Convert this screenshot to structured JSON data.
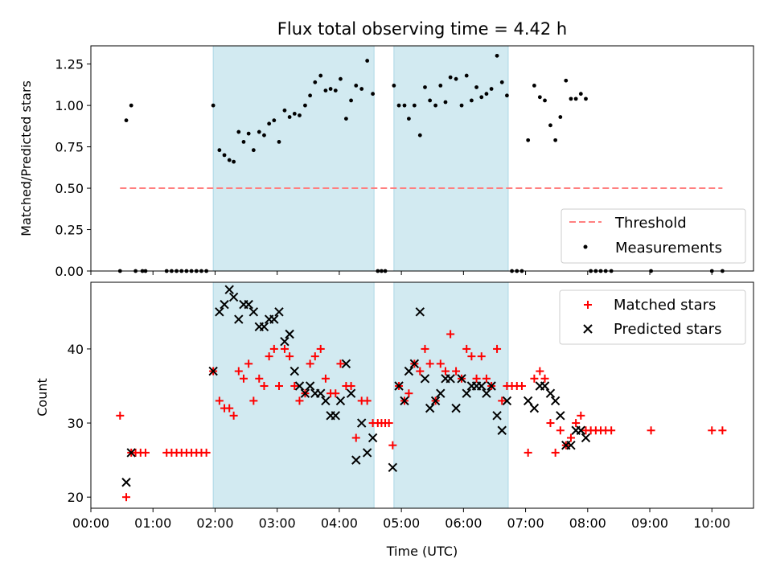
{
  "title": "Flux total observing time = 4.42 h",
  "xlabel": "Time (UTC)",
  "top_ylabel": "Matched/Predicted stars",
  "bottom_ylabel": "Count",
  "legend_top": {
    "threshold": "Threshold",
    "measurements": "Measurements"
  },
  "legend_bottom": {
    "matched": "Matched stars",
    "predicted": "Predicted stars"
  },
  "colors": {
    "shade": "#add8e6",
    "threshold": "#ff7f7f",
    "measurements": "#000000",
    "matched": "#ff0000",
    "predicted": "#000000"
  },
  "chart_data": [
    {
      "type": "scatter",
      "title": "Flux total observing time = 4.42 h",
      "ylabel": "Matched/Predicted stars",
      "xlim": [
        0,
        10.67
      ],
      "ylim": [
        0,
        1.36
      ],
      "x_ticks": [
        "00:00",
        "01:00",
        "02:00",
        "03:00",
        "04:00",
        "05:00",
        "06:00",
        "07:00",
        "08:00",
        "09:00",
        "10:00"
      ],
      "y_ticks": [
        "0.00",
        "0.25",
        "0.50",
        "0.75",
        "1.00",
        "1.25"
      ],
      "shaded_intervals": [
        [
          1.97,
          4.56
        ],
        [
          4.88,
          6.72
        ]
      ],
      "threshold": {
        "name": "Threshold",
        "y": 0.5,
        "x_range": [
          0.47,
          10.17
        ]
      },
      "series": [
        {
          "name": "Measurements",
          "points": [
            [
              0.47,
              0.0
            ],
            [
              0.57,
              0.91
            ],
            [
              0.65,
              1.0
            ],
            [
              0.72,
              0.0
            ],
            [
              0.83,
              0.0
            ],
            [
              0.88,
              0.0
            ],
            [
              1.22,
              0.0
            ],
            [
              1.3,
              0.0
            ],
            [
              1.38,
              0.0
            ],
            [
              1.46,
              0.0
            ],
            [
              1.54,
              0.0
            ],
            [
              1.62,
              0.0
            ],
            [
              1.7,
              0.0
            ],
            [
              1.78,
              0.0
            ],
            [
              1.86,
              0.0
            ],
            [
              1.97,
              1.0
            ],
            [
              2.07,
              0.73
            ],
            [
              2.15,
              0.7
            ],
            [
              2.23,
              0.67
            ],
            [
              2.3,
              0.66
            ],
            [
              2.38,
              0.84
            ],
            [
              2.46,
              0.78
            ],
            [
              2.54,
              0.83
            ],
            [
              2.62,
              0.73
            ],
            [
              2.71,
              0.84
            ],
            [
              2.79,
              0.82
            ],
            [
              2.87,
              0.89
            ],
            [
              2.95,
              0.91
            ],
            [
              3.03,
              0.78
            ],
            [
              3.12,
              0.97
            ],
            [
              3.2,
              0.93
            ],
            [
              3.28,
              0.95
            ],
            [
              3.36,
              0.94
            ],
            [
              3.45,
              1.0
            ],
            [
              3.53,
              1.06
            ],
            [
              3.61,
              1.14
            ],
            [
              3.7,
              1.18
            ],
            [
              3.78,
              1.09
            ],
            [
              3.86,
              1.1
            ],
            [
              3.94,
              1.09
            ],
            [
              4.02,
              1.16
            ],
            [
              4.11,
              0.92
            ],
            [
              4.19,
              1.03
            ],
            [
              4.27,
              1.12
            ],
            [
              4.36,
              1.1
            ],
            [
              4.45,
              1.27
            ],
            [
              4.54,
              1.07
            ],
            [
              4.62,
              0.0
            ],
            [
              4.68,
              0.0
            ],
            [
              4.74,
              0.0
            ],
            [
              4.88,
              1.12
            ],
            [
              4.96,
              1.0
            ],
            [
              5.05,
              1.0
            ],
            [
              5.12,
              0.92
            ],
            [
              5.21,
              1.0
            ],
            [
              5.3,
              0.82
            ],
            [
              5.38,
              1.11
            ],
            [
              5.46,
              1.03
            ],
            [
              5.55,
              1.0
            ],
            [
              5.63,
              1.12
            ],
            [
              5.71,
              1.02
            ],
            [
              5.79,
              1.17
            ],
            [
              5.88,
              1.16
            ],
            [
              5.97,
              1.0
            ],
            [
              6.05,
              1.18
            ],
            [
              6.13,
              1.03
            ],
            [
              6.21,
              1.11
            ],
            [
              6.29,
              1.05
            ],
            [
              6.37,
              1.07
            ],
            [
              6.45,
              1.1
            ],
            [
              6.54,
              1.3
            ],
            [
              6.62,
              1.14
            ],
            [
              6.7,
              1.06
            ],
            [
              6.78,
              0.0
            ],
            [
              6.86,
              0.0
            ],
            [
              6.94,
              0.0
            ],
            [
              7.04,
              0.79
            ],
            [
              7.14,
              1.12
            ],
            [
              7.23,
              1.05
            ],
            [
              7.31,
              1.03
            ],
            [
              7.4,
              0.88
            ],
            [
              7.48,
              0.79
            ],
            [
              7.56,
              0.93
            ],
            [
              7.65,
              1.15
            ],
            [
              7.73,
              1.04
            ],
            [
              7.81,
              1.04
            ],
            [
              7.89,
              1.07
            ],
            [
              7.97,
              1.04
            ],
            [
              8.05,
              0.0
            ],
            [
              8.13,
              0.0
            ],
            [
              8.21,
              0.0
            ],
            [
              8.29,
              0.0
            ],
            [
              8.38,
              0.0
            ],
            [
              9.02,
              0.0
            ],
            [
              10.0,
              0.0
            ],
            [
              10.17,
              0.0
            ]
          ]
        }
      ]
    },
    {
      "type": "scatter",
      "ylabel": "Count",
      "xlabel": "Time (UTC)",
      "xlim": [
        0,
        10.67
      ],
      "ylim": [
        18.5,
        49
      ],
      "x_ticks": [
        "00:00",
        "01:00",
        "02:00",
        "03:00",
        "04:00",
        "05:00",
        "06:00",
        "07:00",
        "08:00",
        "09:00",
        "10:00"
      ],
      "y_ticks": [
        "20",
        "30",
        "40"
      ],
      "shaded_intervals": [
        [
          1.97,
          4.56
        ],
        [
          4.88,
          6.72
        ]
      ],
      "series": [
        {
          "name": "Matched stars",
          "points": [
            [
              0.47,
              31
            ],
            [
              0.57,
              20
            ],
            [
              0.65,
              26
            ],
            [
              0.72,
              26
            ],
            [
              0.8,
              26
            ],
            [
              0.88,
              26
            ],
            [
              1.22,
              26
            ],
            [
              1.3,
              26
            ],
            [
              1.38,
              26
            ],
            [
              1.46,
              26
            ],
            [
              1.54,
              26
            ],
            [
              1.62,
              26
            ],
            [
              1.7,
              26
            ],
            [
              1.78,
              26
            ],
            [
              1.86,
              26
            ],
            [
              1.97,
              37
            ],
            [
              2.07,
              33
            ],
            [
              2.15,
              32
            ],
            [
              2.23,
              32
            ],
            [
              2.3,
              31
            ],
            [
              2.38,
              37
            ],
            [
              2.46,
              36
            ],
            [
              2.54,
              38
            ],
            [
              2.62,
              33
            ],
            [
              2.71,
              36
            ],
            [
              2.79,
              35
            ],
            [
              2.87,
              39
            ],
            [
              2.95,
              40
            ],
            [
              3.03,
              35
            ],
            [
              3.12,
              40
            ],
            [
              3.2,
              39
            ],
            [
              3.28,
              35
            ],
            [
              3.36,
              33
            ],
            [
              3.45,
              34
            ],
            [
              3.53,
              38
            ],
            [
              3.61,
              39
            ],
            [
              3.7,
              40
            ],
            [
              3.78,
              36
            ],
            [
              3.86,
              34
            ],
            [
              3.94,
              34
            ],
            [
              4.02,
              38
            ],
            [
              4.11,
              35
            ],
            [
              4.19,
              35
            ],
            [
              4.27,
              28
            ],
            [
              4.36,
              33
            ],
            [
              4.45,
              33
            ],
            [
              4.54,
              30
            ],
            [
              4.62,
              30
            ],
            [
              4.68,
              30
            ],
            [
              4.74,
              30
            ],
            [
              4.8,
              30
            ],
            [
              4.86,
              27
            ],
            [
              4.96,
              35
            ],
            [
              5.05,
              33
            ],
            [
              5.12,
              34
            ],
            [
              5.21,
              38
            ],
            [
              5.3,
              37
            ],
            [
              5.38,
              40
            ],
            [
              5.46,
              38
            ],
            [
              5.55,
              33
            ],
            [
              5.63,
              38
            ],
            [
              5.71,
              37
            ],
            [
              5.79,
              42
            ],
            [
              5.88,
              37
            ],
            [
              5.97,
              36
            ],
            [
              6.05,
              40
            ],
            [
              6.13,
              39
            ],
            [
              6.21,
              36
            ],
            [
              6.29,
              39
            ],
            [
              6.37,
              36
            ],
            [
              6.45,
              35
            ],
            [
              6.54,
              40
            ],
            [
              6.62,
              33
            ],
            [
              6.7,
              35
            ],
            [
              6.78,
              35
            ],
            [
              6.86,
              35
            ],
            [
              6.94,
              35
            ],
            [
              7.04,
              26
            ],
            [
              7.14,
              36
            ],
            [
              7.23,
              37
            ],
            [
              7.31,
              36
            ],
            [
              7.4,
              30
            ],
            [
              7.48,
              26
            ],
            [
              7.56,
              29
            ],
            [
              7.65,
              27
            ],
            [
              7.73,
              28
            ],
            [
              7.81,
              30
            ],
            [
              7.89,
              31
            ],
            [
              7.97,
              29
            ],
            [
              8.05,
              29
            ],
            [
              8.13,
              29
            ],
            [
              8.21,
              29
            ],
            [
              8.29,
              29
            ],
            [
              8.38,
              29
            ],
            [
              9.02,
              29
            ],
            [
              10.0,
              29
            ],
            [
              10.17,
              29
            ]
          ]
        },
        {
          "name": "Predicted stars",
          "points": [
            [
              0.57,
              22
            ],
            [
              0.65,
              26
            ],
            [
              1.97,
              37
            ],
            [
              2.07,
              45
            ],
            [
              2.15,
              46
            ],
            [
              2.23,
              48
            ],
            [
              2.3,
              47
            ],
            [
              2.38,
              44
            ],
            [
              2.46,
              46
            ],
            [
              2.54,
              46
            ],
            [
              2.62,
              45
            ],
            [
              2.71,
              43
            ],
            [
              2.79,
              43
            ],
            [
              2.87,
              44
            ],
            [
              2.95,
              44
            ],
            [
              3.03,
              45
            ],
            [
              3.12,
              41
            ],
            [
              3.2,
              42
            ],
            [
              3.28,
              37
            ],
            [
              3.36,
              35
            ],
            [
              3.45,
              34
            ],
            [
              3.53,
              35
            ],
            [
              3.61,
              34
            ],
            [
              3.7,
              34
            ],
            [
              3.78,
              33
            ],
            [
              3.86,
              31
            ],
            [
              3.94,
              31
            ],
            [
              4.02,
              33
            ],
            [
              4.11,
              38
            ],
            [
              4.19,
              34
            ],
            [
              4.27,
              25
            ],
            [
              4.36,
              30
            ],
            [
              4.45,
              26
            ],
            [
              4.54,
              28
            ],
            [
              4.86,
              24
            ],
            [
              4.96,
              35
            ],
            [
              5.05,
              33
            ],
            [
              5.12,
              37
            ],
            [
              5.21,
              38
            ],
            [
              5.3,
              45
            ],
            [
              5.38,
              36
            ],
            [
              5.46,
              32
            ],
            [
              5.55,
              33
            ],
            [
              5.63,
              34
            ],
            [
              5.71,
              36
            ],
            [
              5.79,
              36
            ],
            [
              5.88,
              32
            ],
            [
              5.97,
              36
            ],
            [
              6.05,
              34
            ],
            [
              6.13,
              35
            ],
            [
              6.21,
              35
            ],
            [
              6.29,
              35
            ],
            [
              6.37,
              34
            ],
            [
              6.45,
              35
            ],
            [
              6.54,
              31
            ],
            [
              6.62,
              29
            ],
            [
              6.7,
              33
            ],
            [
              7.04,
              33
            ],
            [
              7.14,
              32
            ],
            [
              7.23,
              35
            ],
            [
              7.31,
              35
            ],
            [
              7.4,
              34
            ],
            [
              7.48,
              33
            ],
            [
              7.56,
              31
            ],
            [
              7.65,
              27
            ],
            [
              7.73,
              27
            ],
            [
              7.81,
              29
            ],
            [
              7.89,
              29
            ],
            [
              7.97,
              28
            ]
          ]
        }
      ]
    }
  ]
}
